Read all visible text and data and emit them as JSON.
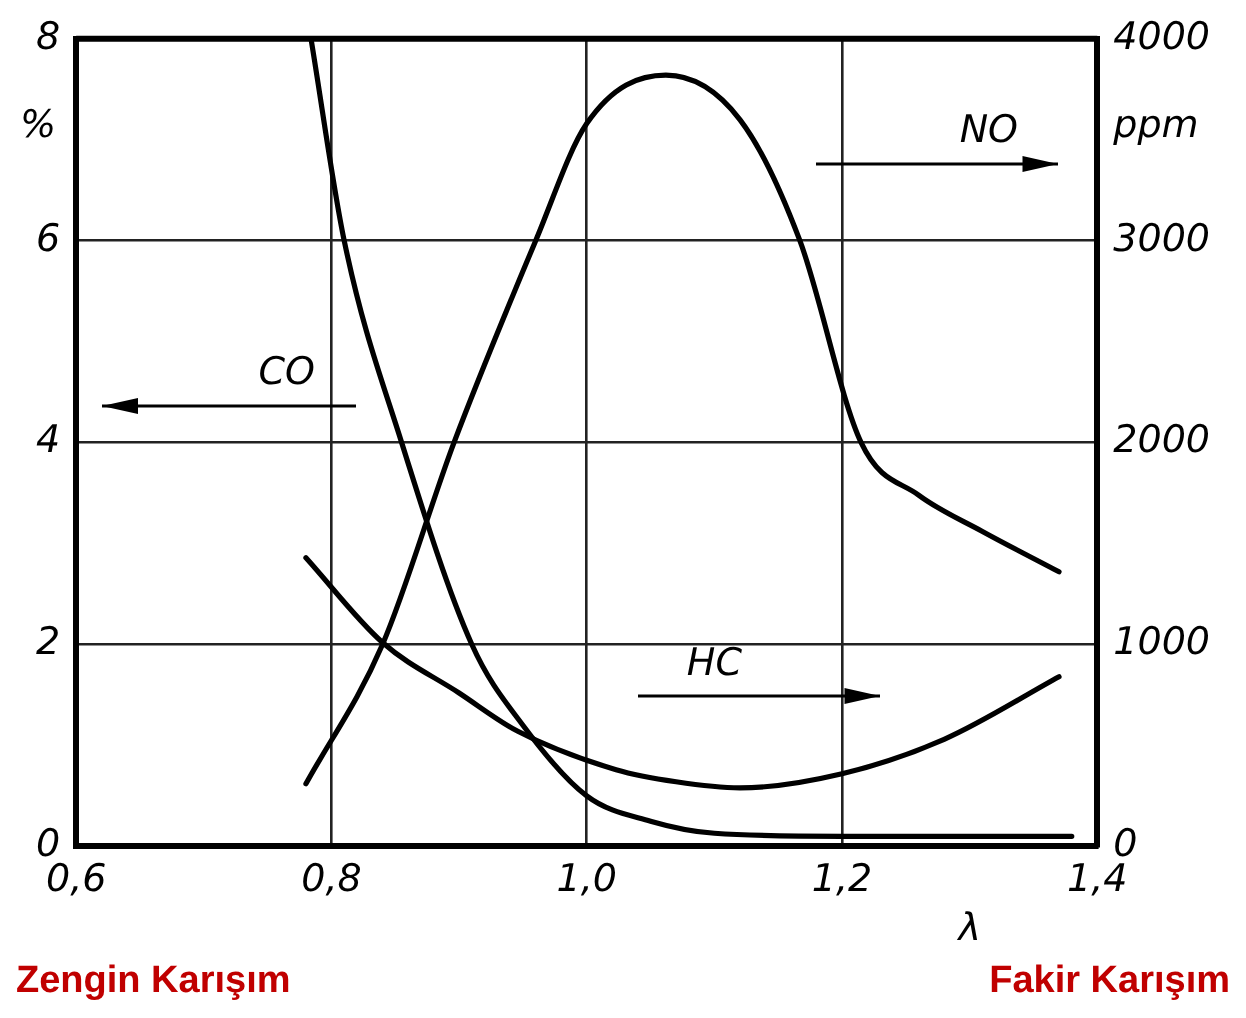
{
  "chart_data": {
    "type": "line",
    "xlabel": "λ",
    "ylabel": "%",
    "y2label": "ppm",
    "xlim": [
      0.6,
      1.4
    ],
    "xticks": [
      {
        "value": 0.6,
        "label": "0,6"
      },
      {
        "value": 0.8,
        "label": "0,8"
      },
      {
        "value": 1.0,
        "label": "1,0"
      },
      {
        "value": 1.2,
        "label": "1,2"
      },
      {
        "value": 1.4,
        "label": "1,4"
      }
    ],
    "ylim": [
      0,
      8
    ],
    "yticks": [
      0,
      2,
      4,
      6,
      8
    ],
    "y2lim": [
      0,
      4000
    ],
    "y2ticks": [
      0,
      1000,
      2000,
      3000,
      4000
    ],
    "grid": true,
    "legend": false,
    "marker": "none",
    "line_style": "solid",
    "series": [
      {
        "name": "CO",
        "color": "#000000",
        "x": [
          0.784,
          0.81,
          0.855,
          0.91,
          0.95,
          1.0,
          1.05,
          1.1,
          1.2,
          1.3,
          1.38
        ],
        "values": [
          8,
          6,
          4,
          2,
          1.2,
          0.5,
          0.25,
          0.13,
          0.1,
          0.1,
          0.1
        ]
      },
      {
        "name": "NO",
        "color": "#000000",
        "axis": "y2",
        "x": [
          0.78,
          0.84,
          0.896,
          0.96,
          1.0,
          1.062,
          1.12,
          1.167,
          1.215,
          1.26,
          1.31,
          1.37
        ],
        "values": [
          310,
          1000,
          2000,
          3000,
          3580,
          3820,
          3600,
          3000,
          2000,
          1740,
          1560,
          1360
        ]
      },
      {
        "name": "HC",
        "color": "#000000",
        "axis": "y2",
        "x": [
          0.78,
          0.84,
          0.9,
          0.946,
          1.023,
          1.07,
          1.12,
          1.2,
          1.28,
          1.37
        ],
        "values": [
          1430,
          1010,
          760,
          570,
          380,
          320,
          290,
          360,
          530,
          840
        ]
      }
    ],
    "annotations": [
      "Zengin Karışım",
      "Fakir Karışım"
    ]
  }
}
